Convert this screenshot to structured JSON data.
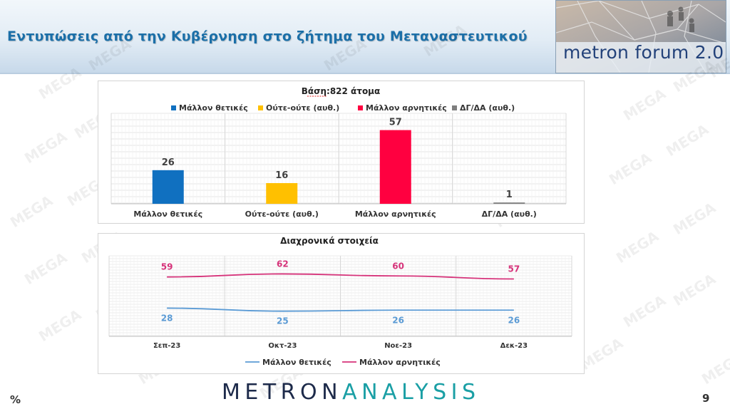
{
  "header": {
    "title": "Εντυπώσεις από την Κυβέρνηση στο ζήτημα του Μεταναστευτικού",
    "logo_text": "metron forum 2.0"
  },
  "watermark": {
    "text": "MEGA"
  },
  "colors": {
    "positive": "#1070c0",
    "neutral": "#ffc000",
    "negative": "#ff0040",
    "dkna": "#7f7f7f",
    "trend_positive": "#5b9bd5",
    "trend_negative": "#d6337a",
    "brand_dark": "#1d2a4a",
    "brand_teal": "#1a9fa5"
  },
  "chart_data": [
    {
      "type": "bar",
      "title": "Βάση:822 άτομα",
      "categories": [
        "Μάλλον θετικές",
        "Ούτε-ούτε (αυθ.)",
        "Μάλλον αρνητικές",
        "ΔΓ/ΔΑ (αυθ.)"
      ],
      "values": [
        26,
        16,
        57,
        1
      ],
      "legend": [
        "Μάλλον θετικές",
        "Ούτε-ούτε (αυθ.)",
        "Μάλλον αρνητικές",
        "ΔΓ/ΔΑ (αυθ.)"
      ],
      "legend_position": "top",
      "ylim": [
        0,
        70
      ],
      "grid": true
    },
    {
      "type": "line",
      "title": "Διαχρονικά στοιχεία",
      "x": [
        "Σεπ-23",
        "Οκτ-23",
        "Νοε-23",
        "Δεκ-23"
      ],
      "series": [
        {
          "name": "Μάλλον θετικές",
          "values": [
            28,
            25,
            26,
            26
          ]
        },
        {
          "name": "Μάλλον αρνητικές",
          "values": [
            59,
            62,
            60,
            57
          ]
        }
      ],
      "legend_position": "bottom",
      "ylim": [
        0,
        80
      ],
      "grid": true
    }
  ],
  "footer": {
    "brand_part1": "METRON",
    "brand_part2": "ANALYSIS",
    "unit": "%",
    "page_number": "9"
  }
}
